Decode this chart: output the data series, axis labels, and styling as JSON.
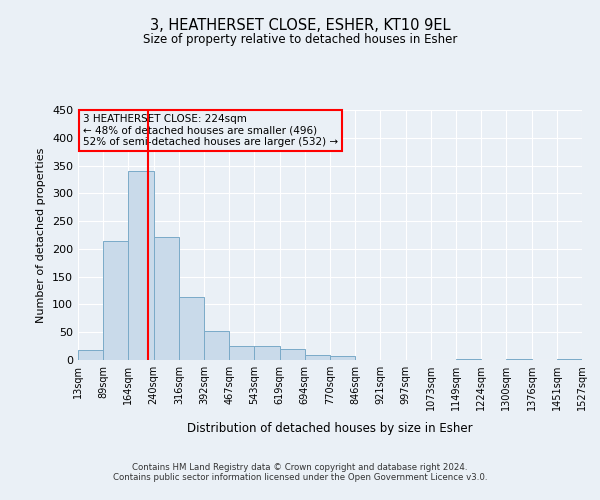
{
  "title": "3, HEATHERSET CLOSE, ESHER, KT10 9EL",
  "subtitle": "Size of property relative to detached houses in Esher",
  "xlabel": "Distribution of detached houses by size in Esher",
  "ylabel": "Number of detached properties",
  "bar_color": "#c9daea",
  "bar_edge_color": "#7aaac8",
  "bin_edges": [
    13,
    89,
    164,
    240,
    316,
    392,
    467,
    543,
    619,
    694,
    770,
    846,
    921,
    997,
    1073,
    1149,
    1224,
    1300,
    1376,
    1451,
    1527
  ],
  "bar_heights": [
    18,
    215,
    340,
    222,
    113,
    53,
    26,
    25,
    20,
    9,
    7,
    0,
    0,
    0,
    0,
    2,
    0,
    2,
    0,
    2
  ],
  "tick_labels": [
    "13sqm",
    "89sqm",
    "164sqm",
    "240sqm",
    "316sqm",
    "392sqm",
    "467sqm",
    "543sqm",
    "619sqm",
    "694sqm",
    "770sqm",
    "846sqm",
    "921sqm",
    "997sqm",
    "1073sqm",
    "1149sqm",
    "1224sqm",
    "1300sqm",
    "1376sqm",
    "1451sqm",
    "1527sqm"
  ],
  "red_line_x": 224,
  "ylim": [
    0,
    450
  ],
  "yticks": [
    0,
    50,
    100,
    150,
    200,
    250,
    300,
    350,
    400,
    450
  ],
  "annotation_title": "3 HEATHERSET CLOSE: 224sqm",
  "annotation_line1": "← 48% of detached houses are smaller (496)",
  "annotation_line2": "52% of semi-detached houses are larger (532) →",
  "background_color": "#eaf0f6",
  "grid_color": "#ffffff",
  "footer1": "Contains HM Land Registry data © Crown copyright and database right 2024.",
  "footer2": "Contains public sector information licensed under the Open Government Licence v3.0."
}
